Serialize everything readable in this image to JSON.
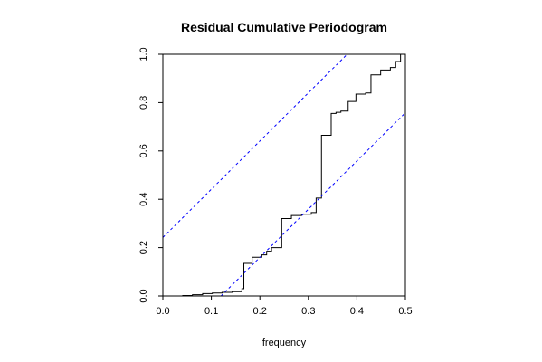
{
  "chart_data": {
    "type": "line",
    "title": "Residual Cumulative Periodogram",
    "xlabel": "frequency",
    "ylabel": "",
    "xlim": [
      0,
      0.5
    ],
    "ylim": [
      0,
      1
    ],
    "x_ticks": [
      "0.0",
      "0.1",
      "0.2",
      "0.3",
      "0.4",
      "0.5"
    ],
    "y_ticks": [
      "0.0",
      "0.2",
      "0.4",
      "0.6",
      "0.8",
      "1.0"
    ],
    "grid": false,
    "legend": "none",
    "series": [
      {
        "style": "step",
        "color": "#000000",
        "points": [
          [
            0.02,
            0.0
          ],
          [
            0.041,
            0.002
          ],
          [
            0.061,
            0.005
          ],
          [
            0.082,
            0.01
          ],
          [
            0.102,
            0.012
          ],
          [
            0.122,
            0.015
          ],
          [
            0.143,
            0.018
          ],
          [
            0.163,
            0.03
          ],
          [
            0.167,
            0.135
          ],
          [
            0.184,
            0.16
          ],
          [
            0.204,
            0.17
          ],
          [
            0.214,
            0.185
          ],
          [
            0.224,
            0.2
          ],
          [
            0.245,
            0.32
          ],
          [
            0.265,
            0.333
          ],
          [
            0.286,
            0.338
          ],
          [
            0.306,
            0.345
          ],
          [
            0.316,
            0.405
          ],
          [
            0.327,
            0.665
          ],
          [
            0.347,
            0.755
          ],
          [
            0.357,
            0.76
          ],
          [
            0.367,
            0.765
          ],
          [
            0.382,
            0.805
          ],
          [
            0.398,
            0.835
          ],
          [
            0.418,
            0.84
          ],
          [
            0.429,
            0.915
          ],
          [
            0.449,
            0.935
          ],
          [
            0.469,
            0.945
          ],
          [
            0.48,
            0.97
          ],
          [
            0.49,
            1.0
          ]
        ]
      },
      {
        "style": "dashed",
        "color": "#0000ff",
        "points": [
          [
            0.0,
            0.242
          ],
          [
            0.38,
            1.0
          ]
        ]
      },
      {
        "style": "dashed",
        "color": "#0000ff",
        "points": [
          [
            0.12,
            0.0
          ],
          [
            0.5,
            0.758
          ]
        ]
      }
    ]
  }
}
